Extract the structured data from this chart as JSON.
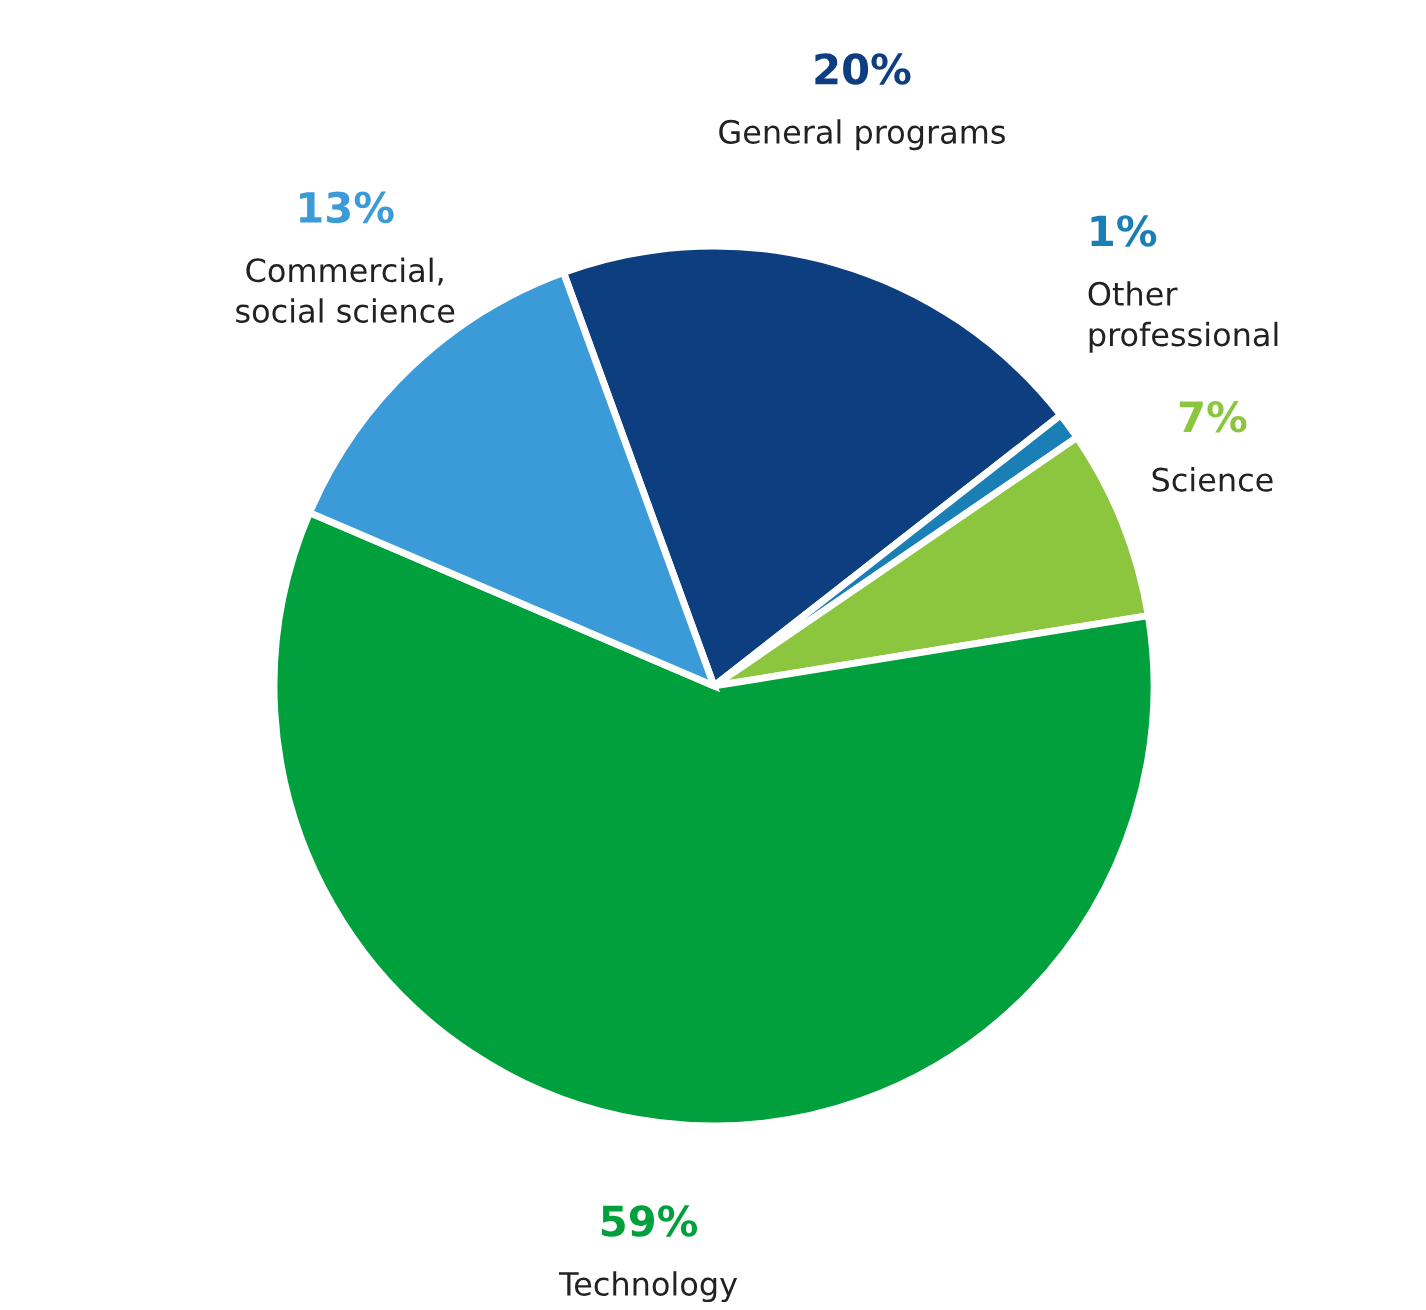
{
  "chart_data": {
    "type": "pie",
    "categories": [
      "General programs",
      "Other\nprofessional",
      "Science",
      "Technology",
      "Commercial,\nsocial science"
    ],
    "values": [
      20,
      1,
      7,
      59,
      13
    ],
    "value_labels": [
      "20%",
      "1%",
      "7%",
      "59%",
      "13%"
    ],
    "colors": [
      "#0d3f80",
      "#1a7fb5",
      "#8cc63f",
      "#00a03c",
      "#3b9ad8"
    ],
    "legend": false
  }
}
